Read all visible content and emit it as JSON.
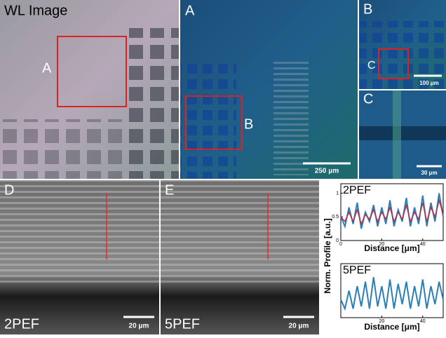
{
  "panels": {
    "wl": {
      "label": "WL Image",
      "marker": "A"
    },
    "a": {
      "label": "A",
      "marker": "B",
      "scale": "250 μm"
    },
    "b": {
      "label": "B",
      "marker": "C",
      "scale": "100 μm"
    },
    "c": {
      "label": "C",
      "scale": "30 μm"
    },
    "d": {
      "label": "D",
      "mode": "2PEF",
      "scale": "20 μm"
    },
    "e": {
      "label": "E",
      "mode": "5PEF",
      "scale": "20 μm"
    }
  },
  "chart_data": [
    {
      "type": "line",
      "title": "2PEF",
      "ylabel": "Norm. Profile [a.u.]",
      "xlabel": "Distance [μm]",
      "x": [
        0,
        2,
        4,
        6,
        8,
        10,
        12,
        14,
        16,
        18,
        20,
        22,
        24,
        26,
        28,
        30,
        32,
        34,
        36,
        38,
        40,
        42,
        44,
        46,
        48,
        50
      ],
      "series": [
        {
          "color": "#2a7fb8",
          "values": [
            0.5,
            0.3,
            0.7,
            0.35,
            0.8,
            0.25,
            0.6,
            0.4,
            0.75,
            0.3,
            0.7,
            0.35,
            0.85,
            0.3,
            0.65,
            0.4,
            0.9,
            0.3,
            0.7,
            0.35,
            0.95,
            0.3,
            0.8,
            0.4,
            1.0,
            0.5
          ]
        },
        {
          "color": "#b0304a",
          "values": [
            0.5,
            0.4,
            0.6,
            0.4,
            0.65,
            0.35,
            0.55,
            0.45,
            0.65,
            0.4,
            0.6,
            0.45,
            0.7,
            0.4,
            0.6,
            0.45,
            0.75,
            0.4,
            0.6,
            0.45,
            0.8,
            0.4,
            0.7,
            0.5,
            0.85,
            0.55
          ]
        }
      ],
      "xlim": [
        0,
        50
      ],
      "ylim": [
        0,
        1.2
      ],
      "xticks": [
        0,
        20,
        40
      ],
      "yticks": [
        0,
        0.5,
        1
      ]
    },
    {
      "type": "line",
      "title": "5PEF",
      "xlabel": "Distance [μm]",
      "x": [
        0,
        2,
        4,
        6,
        8,
        10,
        12,
        14,
        16,
        18,
        20,
        22,
        24,
        26,
        28,
        30,
        32,
        34,
        36,
        38,
        40,
        42,
        44,
        46,
        48,
        50
      ],
      "series": [
        {
          "color": "#2a7fb8",
          "values": [
            0.4,
            0.2,
            0.6,
            0.2,
            0.7,
            0.25,
            0.8,
            0.2,
            0.9,
            0.25,
            0.7,
            0.2,
            0.85,
            0.2,
            0.75,
            0.3,
            0.8,
            0.2,
            0.7,
            0.25,
            0.85,
            0.2,
            0.7,
            0.3,
            0.8,
            0.4
          ]
        }
      ],
      "xlim": [
        0,
        50
      ],
      "ylim": [
        0,
        1.2
      ],
      "xticks": [
        20,
        40
      ]
    }
  ]
}
